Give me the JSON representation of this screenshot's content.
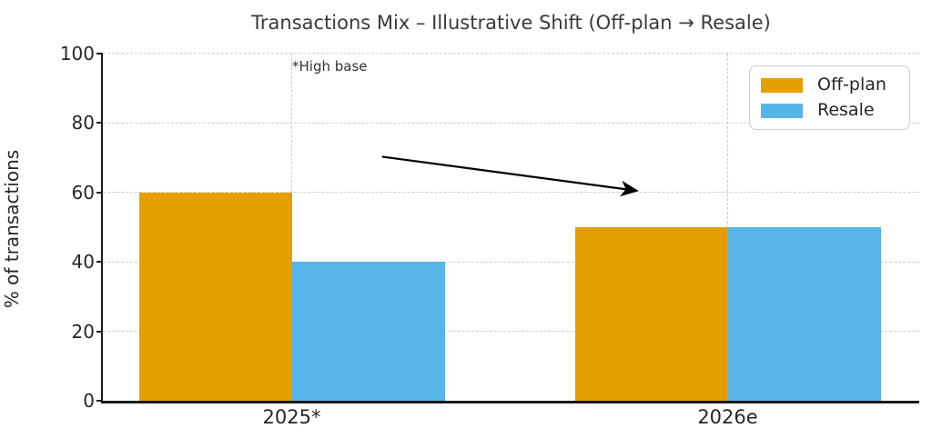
{
  "chart_data": {
    "type": "bar",
    "title": "Transactions Mix – Illustrative Shift (Off-plan → Resale)",
    "ylabel": "% of transactions",
    "xlabel": "",
    "categories": [
      "2025*",
      "2026e"
    ],
    "series": [
      {
        "name": "Off-plan",
        "color": "#E69F00",
        "values": [
          60,
          50
        ]
      },
      {
        "name": "Resale",
        "color": "#56B4E9",
        "values": [
          40,
          50
        ]
      }
    ],
    "ylim": [
      0,
      100
    ],
    "yticks": [
      0,
      20,
      40,
      60,
      80,
      100
    ],
    "grid": true,
    "grid_style": "dashed",
    "legend_position": "upper right",
    "annotations": {
      "note": {
        "text": "*High base",
        "near_category": "2025*",
        "y_value": 97
      },
      "arrow": {
        "from": {
          "x_pct": 34.2,
          "y_value": 70.3
        },
        "to": {
          "x_pct": 65.4,
          "y_value": 60.5
        }
      }
    }
  },
  "colors": {
    "text": "#262626",
    "title_text": "#3a3a3a",
    "grid": "#cccccc",
    "axis": "#1a1a1a",
    "legend_border": "#cccccc",
    "background": "#ffffff",
    "arrow": "#000000"
  }
}
